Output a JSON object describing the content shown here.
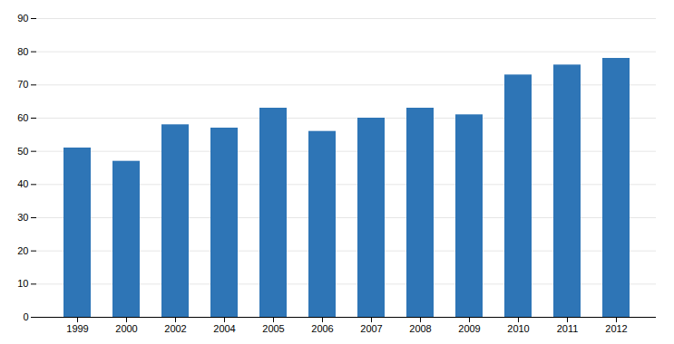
{
  "chart_data": {
    "type": "bar",
    "categories": [
      "1999",
      "2000",
      "2002",
      "2004",
      "2005",
      "2006",
      "2007",
      "2008",
      "2009",
      "2010",
      "2011",
      "2012"
    ],
    "values": [
      51,
      47,
      58,
      57,
      63,
      56,
      60,
      63,
      61,
      73,
      76,
      78
    ],
    "color": "#2E75B6",
    "ylim": [
      0,
      90
    ],
    "yticks": [
      0,
      10,
      20,
      30,
      40,
      50,
      60,
      70,
      80,
      90
    ],
    "grid": true
  }
}
